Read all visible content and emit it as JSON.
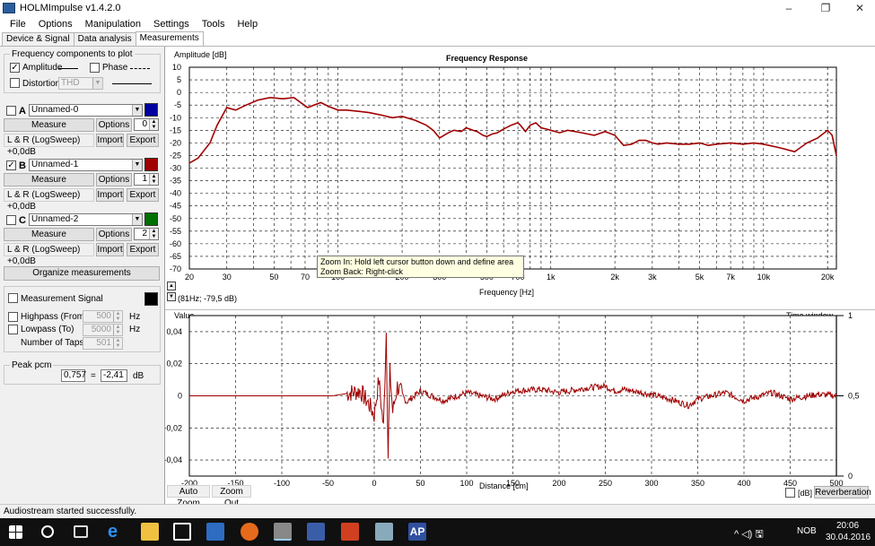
{
  "window": {
    "title": "HOLMImpulse  v1.4.2.0",
    "min": "–",
    "max": "❐",
    "close": "✕"
  },
  "menu": [
    "File",
    "Options",
    "Manipulation",
    "Settings",
    "Tools",
    "Help"
  ],
  "tabs": [
    {
      "label": "Device & Signal"
    },
    {
      "label": "Data analysis"
    },
    {
      "label": "Measurements"
    }
  ],
  "freq_components": {
    "title": "Frequency components to plot",
    "amplitude": {
      "label": "Amplitude",
      "checked": "✓"
    },
    "phase": {
      "label": "Phase"
    },
    "distortion": {
      "label": "Distortion",
      "select": "THD"
    }
  },
  "measurements": [
    {
      "letter": "A",
      "checked": "",
      "name": "Unnamed-0",
      "color": "#0000a0",
      "measure": "Measure",
      "options": "Options",
      "spin": "0",
      "info": "L & R (LogSweep) +0,0dB",
      "import": "Import",
      "export": "Export"
    },
    {
      "letter": "B",
      "checked": "✓",
      "name": "Unnamed-1",
      "color": "#a00000",
      "measure": "Measure",
      "options": "Options",
      "spin": "1",
      "info": "L & R (LogSweep) +0,0dB",
      "import": "Import",
      "export": "Export"
    },
    {
      "letter": "C",
      "checked": "",
      "name": "Unnamed-2",
      "color": "#007000",
      "measure": "Measure",
      "options": "Options",
      "spin": "2",
      "info": "L & R (LogSweep) +0,0dB",
      "import": "Import",
      "export": "Export"
    }
  ],
  "organize": "Organize measurements",
  "signal": {
    "measurement_signal": "Measurement Signal",
    "highpass": {
      "label": "Highpass (From)",
      "value": "500",
      "unit": "Hz"
    },
    "lowpass": {
      "label": "Lowpass (To)",
      "value": "5000",
      "unit": "Hz"
    },
    "taps": {
      "label": "Number of Taps",
      "value": "501"
    }
  },
  "peak": {
    "title": "Peak pcm",
    "value": "0,757",
    "eq": "=",
    "db": "-2,41",
    "unit": "dB"
  },
  "freq_chart": {
    "title": "Frequency Response",
    "ylabel": "Amplitude [dB]",
    "xlabel": "Frequency [Hz]",
    "yticks": [
      "10",
      "5",
      "0",
      "-5",
      "-10",
      "-15",
      "-20",
      "-25",
      "-30",
      "-35",
      "-40",
      "-45",
      "-50",
      "-55",
      "-60",
      "-65",
      "-70"
    ],
    "xticks": [
      "20",
      "30",
      "50",
      "70",
      "100",
      "200",
      "300",
      "500",
      "700",
      "1k",
      "2k",
      "3k",
      "5k",
      "7k",
      "10k",
      "20k"
    ],
    "cursor": "(81Hz; -79,5 dB)"
  },
  "time_chart": {
    "ylabel": "Value",
    "right_label": "Time window",
    "xlabel": "Distance [cm]",
    "yticks": [
      "0,04",
      "0,02",
      "0",
      "-0,02",
      "-0,04"
    ],
    "xticks": [
      "-200",
      "-150",
      "-100",
      "-50",
      "0",
      "50",
      "100",
      "150",
      "200",
      "250",
      "300",
      "350",
      "400",
      "450",
      "500"
    ],
    "window_ticks": [
      "1",
      "0,5",
      "0"
    ],
    "auto_zoom": "Auto Zoom",
    "zoom_out": "Zoom Out",
    "db_label": "[dB]",
    "reverberation": "Reverberation"
  },
  "tooltip": {
    "line1": "Zoom In:   Hold left cursor button down and define area",
    "line2": "Zoom Back: Right-click"
  },
  "status": "Audiostream started successfully.",
  "taskbar": {
    "time": "20:06",
    "date": "30.04.2016",
    "lang": "NOB",
    "tray": "^ ◁) 🖫"
  },
  "chart_data": [
    {
      "type": "line",
      "title": "Frequency Response",
      "xlabel": "Frequency [Hz]",
      "ylabel": "Amplitude [dB]",
      "xscale": "log",
      "xlim": [
        20,
        22000
      ],
      "ylim": [
        -70,
        10
      ],
      "grid": true,
      "series": [
        {
          "color": "#a00000",
          "x": [
            20,
            22,
            25,
            27,
            30,
            33,
            37,
            42,
            48,
            55,
            62,
            68,
            72,
            77,
            83,
            90,
            100,
            110,
            125,
            140,
            160,
            180,
            200,
            230,
            260,
            280,
            300,
            330,
            350,
            380,
            400,
            430,
            450,
            480,
            500,
            530,
            560,
            600,
            650,
            700,
            720,
            760,
            800,
            850,
            900,
            950,
            1000,
            1100,
            1200,
            1400,
            1600,
            1800,
            2000,
            2100,
            2200,
            2400,
            2600,
            2800,
            3000,
            3200,
            3500,
            4000,
            4500,
            5000,
            5500,
            6000,
            7000,
            8000,
            9000,
            10000,
            12000,
            14000,
            16000,
            18000,
            20000,
            21000,
            22000
          ],
          "y": [
            -28,
            -26,
            -20,
            -13,
            -6,
            -7,
            -5,
            -3,
            -2,
            -2.5,
            -2,
            -4.5,
            -6,
            -5,
            -4,
            -5.5,
            -7,
            -7,
            -7.5,
            -8,
            -9,
            -10,
            -9.5,
            -11,
            -13,
            -15,
            -18,
            -16,
            -15,
            -15.5,
            -14,
            -15,
            -15.5,
            -17,
            -17.5,
            -16.5,
            -16,
            -14.5,
            -13,
            -12,
            -13,
            -15.5,
            -13,
            -12,
            -14,
            -14.5,
            -15,
            -16,
            -15,
            -16,
            -17,
            -15.5,
            -17,
            -19,
            -21,
            -20.5,
            -19,
            -19,
            -20,
            -20.5,
            -20,
            -20.5,
            -20.5,
            -20,
            -21,
            -20.5,
            -20,
            -20.5,
            -20,
            -20.5,
            -22,
            -23.5,
            -20,
            -18,
            -15,
            -17,
            -25
          ]
        }
      ]
    },
    {
      "type": "line",
      "xlabel": "Distance [cm]",
      "ylabel": "Value",
      "xlim": [
        -200,
        500
      ],
      "ylim": [
        -0.05,
        0.05
      ],
      "grid": true,
      "series": [
        {
          "color": "#a00000",
          "x": [
            -200,
            -100,
            -60,
            -45,
            -30,
            -15,
            -5,
            0,
            5,
            10,
            13,
            15,
            17,
            20,
            25,
            35,
            50,
            75,
            100,
            130,
            150,
            180,
            200,
            230,
            250,
            260,
            270,
            290,
            320,
            340,
            350,
            380,
            400,
            430,
            450,
            480,
            500
          ],
          "y": [
            0,
            0,
            0,
            0,
            0.0015,
            0.003,
            -0.006,
            -0.012,
            0.01,
            -0.02,
            0.04,
            -0.038,
            0.015,
            -0.01,
            0.006,
            -0.004,
            0.003,
            -0.003,
            0.002,
            -0.002,
            0.003,
            0.004,
            0.002,
            0.005,
            0.006,
            0.003,
            0.004,
            0.002,
            -0.002,
            -0.006,
            -0.002,
            0.002,
            -0.003,
            0.002,
            -0.002,
            0.001,
            0
          ]
        }
      ],
      "time_window": {
        "range": [
          0,
          1
        ],
        "ticks": [
          1,
          0.5,
          0
        ]
      }
    }
  ]
}
